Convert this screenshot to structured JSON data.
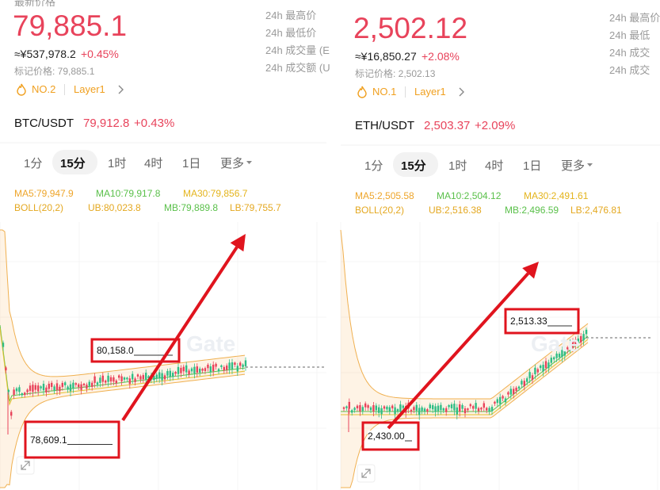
{
  "panels": [
    {
      "top_label": "最新价格",
      "price": "79,885.1",
      "cny": "≈¥537,978.2",
      "change": "+0.45%",
      "mark_price": "标记价格: 79,885.1",
      "rank": "NO.2",
      "tag": "Layer1",
      "stats": [
        "24h 最高价",
        "24h 最低价",
        "24h 成交量 (E",
        "24h 成交额 (U"
      ],
      "pair": "BTC/USDT",
      "pair_price": "79,912.8",
      "pair_change": "+0.43%",
      "tabs": [
        "1分",
        "15分",
        "1时",
        "4时",
        "1日",
        "更多"
      ],
      "ma": [
        "MA5:79,947.9",
        "MA10:79,917.8",
        "MA30:79,856.7"
      ],
      "boll": [
        "BOLL(20,2)",
        "UB:80,023.8",
        "MB:79,889.8",
        "LB:79,755.7"
      ],
      "annotations": [
        "80,158.0",
        "78,609.1"
      ],
      "watermark": "Gate"
    },
    {
      "top_label": "",
      "price": "2,502.12",
      "cny": "≈¥16,850.27",
      "change": "+2.08%",
      "mark_price": "标记价格: 2,502.13",
      "rank": "NO.1",
      "tag": "Layer1",
      "stats": [
        "24h 最高价",
        "24h 最低",
        "24h 成交",
        "24h 成交"
      ],
      "pair": "ETH/USDT",
      "pair_price": "2,503.37",
      "pair_change": "+2.09%",
      "tabs": [
        "1分",
        "15分",
        "1时",
        "4时",
        "1日",
        "更多"
      ],
      "ma": [
        "MA5:2,505.58",
        "MA10:2,504.12",
        "MA30:2,491.61"
      ],
      "boll": [
        "BOLL(20,2)",
        "UB:2,516.38",
        "MB:2,496.59",
        "LB:2,476.81"
      ],
      "annotations": [
        "2,513.33",
        "2,430.00"
      ],
      "watermark": "Gate"
    }
  ]
}
